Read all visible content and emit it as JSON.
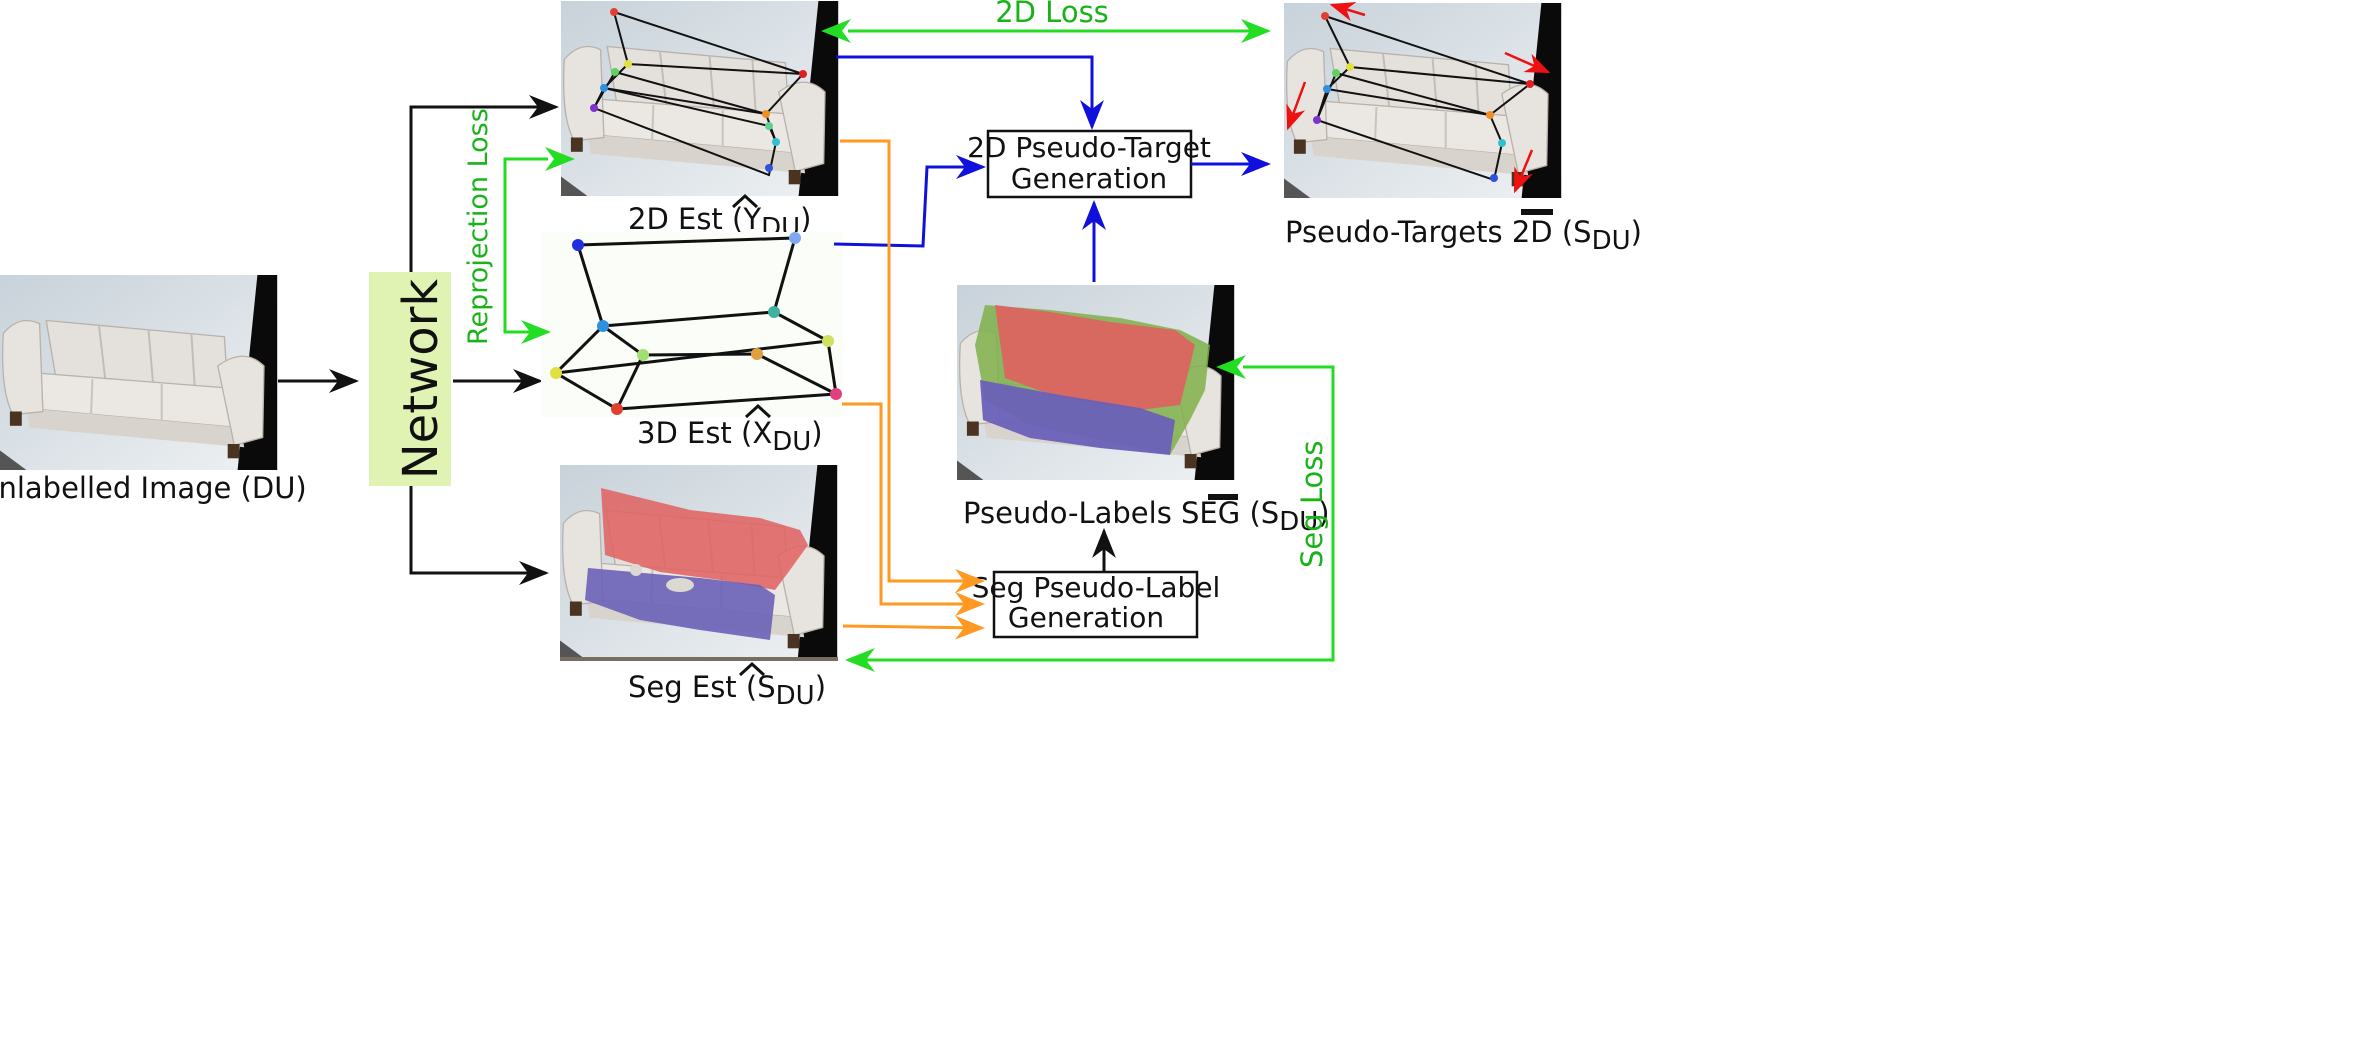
{
  "colors": {
    "black_arrow": "#111111",
    "green_arrow": "#22dd22",
    "blue_arrow": "#1010dd",
    "orange_arrow": "#ff9922",
    "red_arrow": "#ee1111",
    "network_box": "#e1f3b3",
    "seg_back": "#e06060",
    "seg_seat": "#6a60b8",
    "seg_other": "#7fb04a",
    "green_text": "#19b319"
  },
  "labels": {
    "unlabelled": "Unlabelled Image (DU)",
    "network": "Network",
    "reprojection_loss": "Reprojection Loss",
    "est2d_prefix": "2D Est (",
    "est3d_prefix": "3D Est (",
    "seg_est_prefix": "Seg Est (",
    "y_var": "Y",
    "x_var": "X",
    "s_var": "S",
    "du_sub": "DU",
    "close_paren": ")",
    "loss2d": "2D Loss",
    "gen2d_line1": "2D Pseudo-Target",
    "gen2d_line2": "Generation",
    "targets2d_prefix": "Pseudo-Targets 2D (",
    "pseudo_seg_prefix": "Pseudo-Labels SEG (",
    "seggen_line1": "Seg Pseudo-Label",
    "seggen_line2": "Generation",
    "seg_loss": "Seg Loss"
  },
  "icons": {
    "sofa": "sofa-photo-icon",
    "skeleton": "keypoint-skeleton-icon",
    "mask": "segmentation-mask-icon"
  }
}
